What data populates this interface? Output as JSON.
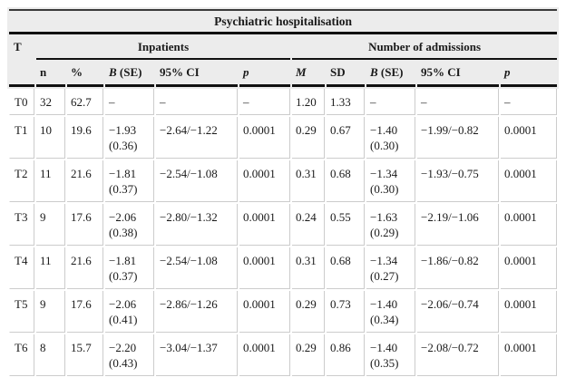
{
  "title": "Psychiatric hospitalisation",
  "t_header": "T",
  "groups": [
    {
      "label": "Inpatients"
    },
    {
      "label": "Number of admissions"
    }
  ],
  "column_keys": [
    "n",
    "percent",
    "b-se",
    "ci95",
    "p",
    "m",
    "sd",
    "b-se-adm",
    "ci95-adm",
    "p-adm"
  ],
  "columns": [
    {
      "italic": "",
      "roman": "n"
    },
    {
      "italic": "",
      "roman": "%"
    },
    {
      "italic": "B",
      "roman": " (SE)"
    },
    {
      "italic": "",
      "roman": "95% CI"
    },
    {
      "italic": "p",
      "roman": ""
    },
    {
      "italic": "M",
      "roman": ""
    },
    {
      "italic": "",
      "roman": "SD"
    },
    {
      "italic": "B",
      "roman": " (SE)"
    },
    {
      "italic": "",
      "roman": "95% CI"
    },
    {
      "italic": "p",
      "roman": ""
    }
  ],
  "rows": [
    {
      "t": "T0",
      "cells": [
        {
          "l1": "32",
          "l2": ""
        },
        {
          "l1": "62.7",
          "l2": ""
        },
        {
          "l1": "–",
          "l2": ""
        },
        {
          "l1": "–",
          "l2": ""
        },
        {
          "l1": "–",
          "l2": ""
        },
        {
          "l1": "1.20",
          "l2": ""
        },
        {
          "l1": "1.33",
          "l2": ""
        },
        {
          "l1": "–",
          "l2": ""
        },
        {
          "l1": "–",
          "l2": ""
        },
        {
          "l1": "–",
          "l2": ""
        }
      ]
    },
    {
      "t": "T1",
      "cells": [
        {
          "l1": "10",
          "l2": ""
        },
        {
          "l1": "19.6",
          "l2": ""
        },
        {
          "l1": "−1.93",
          "l2": "(0.36)"
        },
        {
          "l1": "−2.64/−1.22",
          "l2": ""
        },
        {
          "l1": "0.0001",
          "l2": ""
        },
        {
          "l1": "0.29",
          "l2": ""
        },
        {
          "l1": "0.67",
          "l2": ""
        },
        {
          "l1": "−1.40",
          "l2": "(0.30)"
        },
        {
          "l1": "−1.99/−0.82",
          "l2": ""
        },
        {
          "l1": "0.0001",
          "l2": ""
        }
      ]
    },
    {
      "t": "T2",
      "cells": [
        {
          "l1": "11",
          "l2": ""
        },
        {
          "l1": "21.6",
          "l2": ""
        },
        {
          "l1": "−1.81",
          "l2": "(0.37)"
        },
        {
          "l1": "−2.54/−1.08",
          "l2": ""
        },
        {
          "l1": "0.0001",
          "l2": ""
        },
        {
          "l1": "0.31",
          "l2": ""
        },
        {
          "l1": "0.68",
          "l2": ""
        },
        {
          "l1": "−1.34",
          "l2": "(0.30)"
        },
        {
          "l1": "−1.93/−0.75",
          "l2": ""
        },
        {
          "l1": "0.0001",
          "l2": ""
        }
      ]
    },
    {
      "t": "T3",
      "cells": [
        {
          "l1": "9",
          "l2": ""
        },
        {
          "l1": "17.6",
          "l2": ""
        },
        {
          "l1": "−2.06",
          "l2": "(0.38)"
        },
        {
          "l1": "−2.80/−1.32",
          "l2": ""
        },
        {
          "l1": "0.0001",
          "l2": ""
        },
        {
          "l1": "0.24",
          "l2": ""
        },
        {
          "l1": "0.55",
          "l2": ""
        },
        {
          "l1": "−1.63",
          "l2": "(0.29)"
        },
        {
          "l1": "−2.19/−1.06",
          "l2": ""
        },
        {
          "l1": "0.0001",
          "l2": ""
        }
      ]
    },
    {
      "t": "T4",
      "cells": [
        {
          "l1": "11",
          "l2": ""
        },
        {
          "l1": "21.6",
          "l2": ""
        },
        {
          "l1": "−1.81",
          "l2": "(0.37)"
        },
        {
          "l1": "−2.54/−1.08",
          "l2": ""
        },
        {
          "l1": "0.0001",
          "l2": ""
        },
        {
          "l1": "0.31",
          "l2": ""
        },
        {
          "l1": "0.68",
          "l2": ""
        },
        {
          "l1": "−1.34",
          "l2": "(0.27)"
        },
        {
          "l1": "−1.86/−0.82",
          "l2": ""
        },
        {
          "l1": "0.0001",
          "l2": ""
        }
      ]
    },
    {
      "t": "T5",
      "cells": [
        {
          "l1": "9",
          "l2": ""
        },
        {
          "l1": "17.6",
          "l2": ""
        },
        {
          "l1": "−2.06",
          "l2": "(0.41)"
        },
        {
          "l1": "−2.86/−1.26",
          "l2": ""
        },
        {
          "l1": "0.0001",
          "l2": ""
        },
        {
          "l1": "0.29",
          "l2": ""
        },
        {
          "l1": "0.73",
          "l2": ""
        },
        {
          "l1": "−1.40",
          "l2": "(0.34)"
        },
        {
          "l1": "−2.06/−0.74",
          "l2": ""
        },
        {
          "l1": "0.0001",
          "l2": ""
        }
      ]
    },
    {
      "t": "T6",
      "cells": [
        {
          "l1": "8",
          "l2": ""
        },
        {
          "l1": "15.7",
          "l2": ""
        },
        {
          "l1": "−2.20",
          "l2": "(0.43)"
        },
        {
          "l1": "−3.04/−1.37",
          "l2": ""
        },
        {
          "l1": "0.0001",
          "l2": ""
        },
        {
          "l1": "0.29",
          "l2": ""
        },
        {
          "l1": "0.86",
          "l2": ""
        },
        {
          "l1": "−1.40",
          "l2": "(0.35)"
        },
        {
          "l1": "−2.08/−0.72",
          "l2": ""
        },
        {
          "l1": "0.0001",
          "l2": ""
        }
      ]
    }
  ],
  "colors": {
    "header_background": "#ececec",
    "rule": "#111111",
    "grid_line": "#cccccc",
    "text": "#1a1a1a",
    "body_background": "#ffffff"
  }
}
